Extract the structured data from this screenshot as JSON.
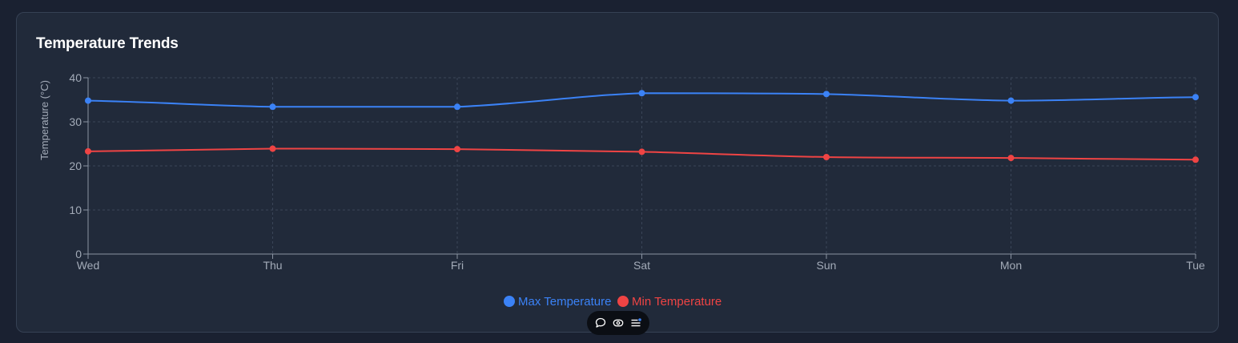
{
  "card": {
    "title": "Temperature Trends"
  },
  "chart_data": {
    "type": "line",
    "title": "Temperature Trends",
    "xlabel": "",
    "ylabel": "Temperature (°C)",
    "categories": [
      "Wed",
      "Thu",
      "Fri",
      "Sat",
      "Sun",
      "Mon",
      "Tue"
    ],
    "ylim": [
      0,
      40
    ],
    "yticks": [
      0,
      10,
      20,
      30,
      40
    ],
    "grid": true,
    "legend": "bottom-center",
    "series": [
      {
        "name": "Max Temperature",
        "color": "#3b82f6",
        "values": [
          34.8,
          33.4,
          33.4,
          36.5,
          36.3,
          34.8,
          35.6
        ]
      },
      {
        "name": "Min Temperature",
        "color": "#ef4444",
        "values": [
          23.3,
          23.9,
          23.8,
          23.2,
          22.0,
          21.8,
          21.4
        ]
      }
    ]
  },
  "toolbar": {
    "icons": [
      "comment-icon",
      "eye-icon",
      "menu-icon"
    ]
  }
}
